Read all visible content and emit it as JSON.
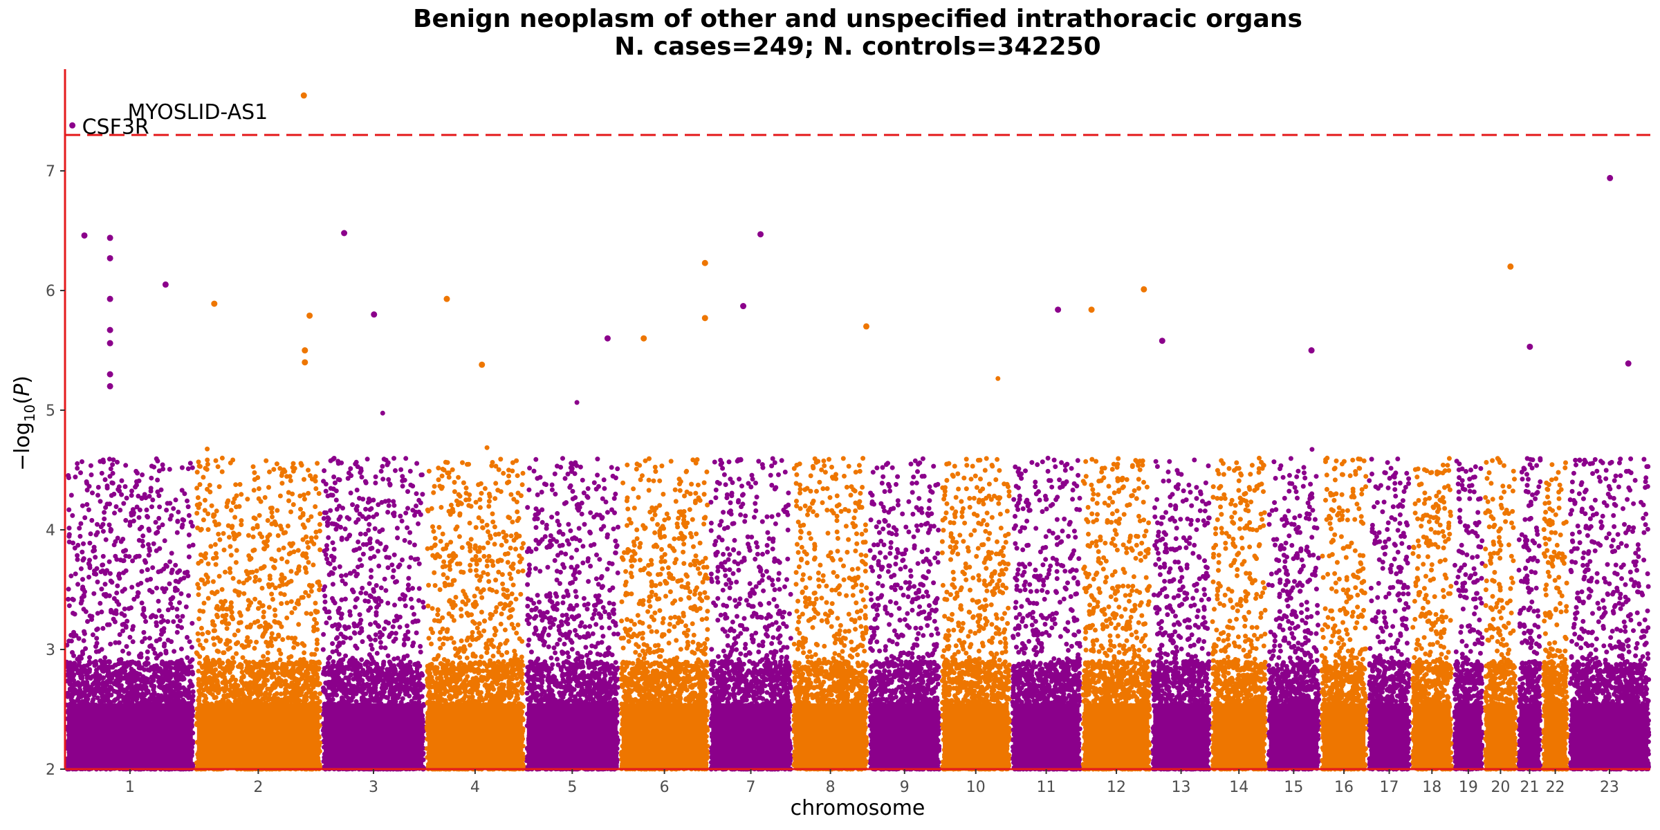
{
  "chart_data": {
    "type": "scatter",
    "title": "Benign neoplasm of other and unspecified intrathoracic organs",
    "subtitle": "N. cases=249; N. controls=342250",
    "xlabel": "chromosome",
    "ylabel": "−log10(P)",
    "ylim": [
      2,
      7.85
    ],
    "y_ticks": [
      2,
      3,
      4,
      5,
      6,
      7
    ],
    "significance_threshold": 7.3,
    "grid": false,
    "colors": {
      "odd": "#8b008b",
      "even": "#ee7600",
      "threshold": "#e41a1c",
      "axis": "#e41a1c"
    },
    "chromosomes": [
      {
        "label": "1",
        "start": 0,
        "end": 248,
        "color": "#8b008b"
      },
      {
        "label": "2",
        "start": 248,
        "end": 490,
        "color": "#ee7600"
      },
      {
        "label": "3",
        "start": 490,
        "end": 688,
        "color": "#8b008b"
      },
      {
        "label": "4",
        "start": 688,
        "end": 878,
        "color": "#ee7600"
      },
      {
        "label": "5",
        "start": 878,
        "end": 1059,
        "color": "#8b008b"
      },
      {
        "label": "6",
        "start": 1059,
        "end": 1230,
        "color": "#ee7600"
      },
      {
        "label": "7",
        "start": 1230,
        "end": 1389,
        "color": "#8b008b"
      },
      {
        "label": "8",
        "start": 1389,
        "end": 1534,
        "color": "#ee7600"
      },
      {
        "label": "9",
        "start": 1534,
        "end": 1672,
        "color": "#8b008b"
      },
      {
        "label": "10",
        "start": 1672,
        "end": 1806,
        "color": "#ee7600"
      },
      {
        "label": "11",
        "start": 1806,
        "end": 1941,
        "color": "#8b008b"
      },
      {
        "label": "12",
        "start": 1941,
        "end": 2074,
        "color": "#ee7600"
      },
      {
        "label": "13",
        "start": 2074,
        "end": 2188,
        "color": "#8b008b"
      },
      {
        "label": "14",
        "start": 2188,
        "end": 2295,
        "color": "#ee7600"
      },
      {
        "label": "15",
        "start": 2295,
        "end": 2397,
        "color": "#8b008b"
      },
      {
        "label": "16",
        "start": 2397,
        "end": 2487,
        "color": "#ee7600"
      },
      {
        "label": "17",
        "start": 2487,
        "end": 2570,
        "color": "#8b008b"
      },
      {
        "label": "18",
        "start": 2570,
        "end": 2650,
        "color": "#ee7600"
      },
      {
        "label": "19",
        "start": 2650,
        "end": 2709,
        "color": "#8b008b"
      },
      {
        "label": "20",
        "start": 2709,
        "end": 2773,
        "color": "#ee7600"
      },
      {
        "label": "21",
        "start": 2773,
        "end": 2820,
        "color": "#8b008b"
      },
      {
        "label": "22",
        "start": 2820,
        "end": 2871,
        "color": "#ee7600"
      },
      {
        "label": "23",
        "start": 2871,
        "end": 3027,
        "color": "#8b008b"
      }
    ],
    "top_hits": [
      {
        "chromosome": "1",
        "x": 14,
        "y": 7.38,
        "label": "CSF3R"
      },
      {
        "chromosome": "2",
        "x": 456,
        "y": 7.63,
        "label": "MYOSLID-AS1"
      },
      {
        "chromosome": "1",
        "x": 37,
        "y": 6.46
      },
      {
        "chromosome": "1",
        "x": 86,
        "y": 6.44
      },
      {
        "chromosome": "1",
        "x": 86,
        "y": 6.27
      },
      {
        "chromosome": "1",
        "x": 86,
        "y": 5.93
      },
      {
        "chromosome": "1",
        "x": 86,
        "y": 5.67
      },
      {
        "chromosome": "1",
        "x": 86,
        "y": 5.56
      },
      {
        "chromosome": "1",
        "x": 86,
        "y": 5.3
      },
      {
        "chromosome": "1",
        "x": 86,
        "y": 5.2
      },
      {
        "chromosome": "1",
        "x": 192,
        "y": 6.05
      },
      {
        "chromosome": "2",
        "x": 285,
        "y": 5.89
      },
      {
        "chromosome": "2",
        "x": 467,
        "y": 5.79
      },
      {
        "chromosome": "2",
        "x": 458,
        "y": 5.5
      },
      {
        "chromosome": "2",
        "x": 458,
        "y": 5.4
      },
      {
        "chromosome": "3",
        "x": 533,
        "y": 6.48
      },
      {
        "chromosome": "3",
        "x": 590,
        "y": 5.8
      },
      {
        "chromosome": "4",
        "x": 729,
        "y": 5.93
      },
      {
        "chromosome": "4",
        "x": 796,
        "y": 5.38
      },
      {
        "chromosome": "5",
        "x": 1036,
        "y": 5.6
      },
      {
        "chromosome": "6",
        "x": 1105,
        "y": 5.6
      },
      {
        "chromosome": "6",
        "x": 1222,
        "y": 6.23
      },
      {
        "chromosome": "6",
        "x": 1222,
        "y": 5.77
      },
      {
        "chromosome": "7",
        "x": 1328,
        "y": 6.47
      },
      {
        "chromosome": "7",
        "x": 1295,
        "y": 5.87
      },
      {
        "chromosome": "8",
        "x": 1530,
        "y": 5.7
      },
      {
        "chromosome": "11",
        "x": 1896,
        "y": 5.84
      },
      {
        "chromosome": "12",
        "x": 1960,
        "y": 5.84
      },
      {
        "chromosome": "12",
        "x": 2060,
        "y": 6.01
      },
      {
        "chromosome": "13",
        "x": 2095,
        "y": 5.58
      },
      {
        "chromosome": "15",
        "x": 2380,
        "y": 5.5
      },
      {
        "chromosome": "20",
        "x": 2760,
        "y": 6.2
      },
      {
        "chromosome": "21",
        "x": 2797,
        "y": 5.53
      },
      {
        "chromosome": "23",
        "x": 2950,
        "y": 6.94
      },
      {
        "chromosome": "23",
        "x": 2985,
        "y": 5.39
      }
    ],
    "notes": "Background points: dense distribution of SNP association values between 2 and ~5 for every chromosome (drawn procedurally)."
  }
}
